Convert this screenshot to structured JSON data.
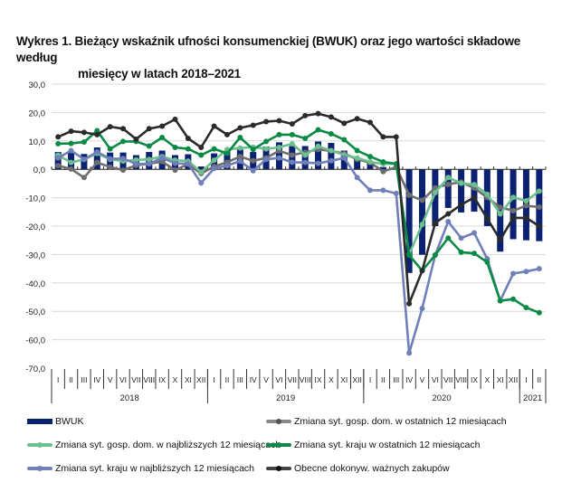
{
  "chart_data": {
    "type": "bar+line",
    "title_line1": "Wykres 1. Bieżący wskaźnik ufności konsumenckiej (BWUK) oraz jego wartości składowe według",
    "title_line2": "miesięcy w latach 2018–2021",
    "xlabel": "",
    "ylabel": "",
    "ylim": [
      -70,
      30
    ],
    "yticks": [
      30,
      20,
      10,
      0,
      -10,
      -20,
      -30,
      -40,
      -50,
      -60,
      -70
    ],
    "ytick_labels": [
      "30,0",
      "20,0",
      "10,0",
      "0,0",
      "-10,0",
      "-20,0",
      "-30,0",
      "-40,0",
      "-50,0",
      "-60,0",
      "-70,0"
    ],
    "grid": true,
    "legend_position": "bottom",
    "month_labels": [
      "I",
      "II",
      "III",
      "IV",
      "V",
      "VI",
      "VII",
      "VIII",
      "IX",
      "X",
      "XI",
      "XII",
      "I",
      "II",
      "III",
      "IV",
      "V",
      "VI",
      "VII",
      "VIII",
      "IX",
      "X",
      "XI",
      "XII",
      "I",
      "II",
      "III",
      "IV",
      "V",
      "VI",
      "VII",
      "VIII",
      "IX",
      "X",
      "XI",
      "XII",
      "I",
      "II"
    ],
    "year_groups": [
      {
        "label": "2018",
        "months": 12
      },
      {
        "label": "2019",
        "months": 12
      },
      {
        "label": "2020",
        "months": 12
      },
      {
        "label": "2021",
        "months": 2
      }
    ],
    "series": [
      {
        "name": "BWUK",
        "kind": "bar",
        "color": "#0b2272",
        "values": [
          6.1,
          6.4,
          5.4,
          7.7,
          5.9,
          5.9,
          5.0,
          6.1,
          6.6,
          5.0,
          5.3,
          1.0,
          5.6,
          6.6,
          7.0,
          6.1,
          8.0,
          9.5,
          8.2,
          8.2,
          9.8,
          9.3,
          6.6,
          4.0,
          2.4,
          0.8,
          0.5,
          -36.5,
          -30.1,
          -20.0,
          -13.6,
          -15.2,
          -14.9,
          -20.0,
          -29.0,
          -24.6,
          -25.0,
          -25.3
        ]
      },
      {
        "name": "Zmiana syt. gosp. dom. w ostatnich 12 miesiącach",
        "kind": "line",
        "color": "#6e6e6e",
        "values": [
          1.3,
          0.1,
          -2.9,
          2.4,
          0.8,
          -0.3,
          1.4,
          2.0,
          2.7,
          -0.3,
          1.8,
          -1.5,
          1.0,
          2.5,
          4.5,
          3.0,
          4.0,
          6.5,
          5.0,
          6.0,
          7.0,
          6.5,
          5.5,
          3.5,
          2.4,
          -0.8,
          0.8,
          -9.1,
          -10.9,
          -6.5,
          -5.3,
          -4.5,
          -6.6,
          -9.9,
          -13.4,
          -14.6,
          -12.8,
          -13.3
        ]
      },
      {
        "name": "Zmiana syt. gosp. dom. w najbliższych 12 miesiącach",
        "kind": "line",
        "color": "#6dbf8f",
        "values": [
          5.0,
          2.4,
          3.5,
          5.6,
          3.5,
          2.9,
          3.3,
          3.5,
          4.5,
          3.2,
          2.9,
          -1.0,
          3.2,
          7.0,
          7.5,
          7.8,
          7.2,
          7.7,
          9.0,
          5.0,
          8.1,
          6.6,
          5.0,
          4.0,
          2.6,
          1.9,
          1.9,
          -30.0,
          -19.4,
          -8.2,
          -2.9,
          -4.9,
          -5.4,
          -8.8,
          -15.7,
          -9.9,
          -11.1,
          -7.7
        ]
      },
      {
        "name": "Zmiana syt. kraju w ostatnich 12 miesiącach",
        "kind": "line",
        "color": "#0a8a45",
        "values": [
          9.0,
          9.1,
          9.6,
          13.6,
          7.2,
          9.8,
          9.8,
          8.2,
          11.2,
          7.7,
          7.2,
          5.0,
          7.2,
          5.6,
          11.2,
          7.0,
          9.8,
          12.2,
          12.2,
          10.9,
          13.9,
          12.5,
          10.4,
          6.6,
          4.5,
          2.6,
          1.9,
          -30.2,
          -35.7,
          -30.2,
          -24.2,
          -29.2,
          -29.6,
          -32.7,
          -46.3,
          -45.7,
          -48.7,
          -50.5
        ]
      },
      {
        "name": "Zmiana syt. kraju w najbliższych 12 miesiącach",
        "kind": "line",
        "color": "#6f7fb8",
        "values": [
          4.0,
          6.6,
          3.5,
          6.1,
          3.7,
          3.8,
          1.9,
          1.9,
          4.0,
          2.1,
          1.9,
          -4.8,
          0.3,
          1.3,
          2.9,
          -0.5,
          3.5,
          4.0,
          2.5,
          2.4,
          2.1,
          3.0,
          4.0,
          -2.9,
          -7.4,
          -7.4,
          -8.5,
          -64.7,
          -49.0,
          -30.2,
          -18.4,
          -24.2,
          -22.4,
          -31.5,
          -46.3,
          -36.7,
          -36.0,
          -35.0
        ]
      },
      {
        "name": "Obecne dokonyw. ważnych zakupów",
        "kind": "line",
        "color": "#2b2b2b",
        "values": [
          11.4,
          13.4,
          13.0,
          12.2,
          15.0,
          14.3,
          10.6,
          14.3,
          15.2,
          17.6,
          10.9,
          7.7,
          15.2,
          12.2,
          14.6,
          15.5,
          16.8,
          17.1,
          16.0,
          18.9,
          19.6,
          18.4,
          16.2,
          17.8,
          16.5,
          11.4,
          11.4,
          -47.3,
          -35.7,
          -18.9,
          -15.7,
          -12.5,
          -9.9,
          -17.3,
          -24.8,
          -17.1,
          -17.1,
          -20.0
        ]
      }
    ]
  },
  "legend": {
    "items": [
      {
        "label": "BWUK"
      },
      {
        "label": "Zmiana syt. gosp. dom. w ostatnich 12 miesiącach"
      },
      {
        "label": "Zmiana syt. gosp. dom. w najbliższych 12 miesiącach"
      },
      {
        "label": "Zmiana syt. kraju w ostatnich 12 miesiącach"
      },
      {
        "label": "Zmiana syt. kraju w najbliższych 12 miesiącach"
      },
      {
        "label": "Obecne dokonyw. ważnych zakupów"
      }
    ]
  }
}
